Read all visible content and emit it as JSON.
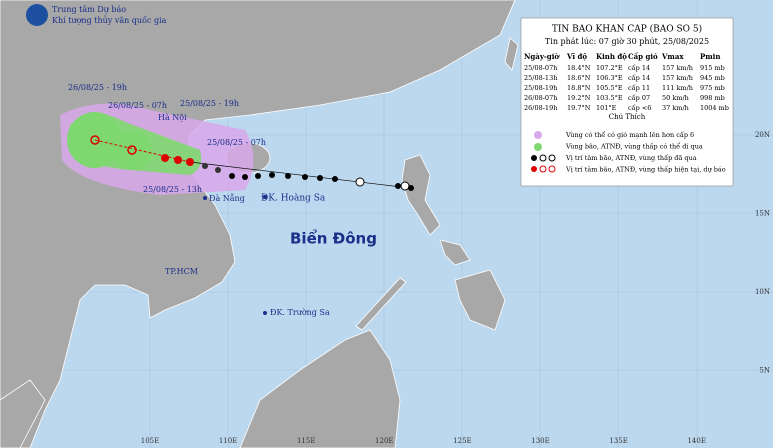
{
  "header": {
    "agency": "Trung tâm Dự báo",
    "agency_sub": "Khí tượng thủy văn quốc gia"
  },
  "map_labels": {
    "t1": "26/08/25 - 19h",
    "t2": "26/08/25 - 07h",
    "t3": "25/08/25 - 19h",
    "hanoi": "Hà Nội",
    "t4": "25/08/25 - 07h",
    "t5": "25/08/25 - 13h",
    "danang": "Đà Nẵng",
    "hoangsa": "ĐK. Hoàng Sa",
    "biendong": "Biển Đông",
    "hcm": "TP.HCM",
    "truongsa": "ĐK. Trường Sa"
  },
  "grid": {
    "lat": [
      "20N",
      "15N",
      "10N",
      "5N"
    ],
    "lon": [
      "105E",
      "110E",
      "115E",
      "120E",
      "125E",
      "130E",
      "135E",
      "140E"
    ]
  },
  "info": {
    "title": "TIN BAO KHAN CAP (BAO SO 5)",
    "issued": "Tin phát lúc: 07 giờ 30 phút, 25/08/2025",
    "table": {
      "header": [
        "Ngày-giờ",
        "Vĩ độ",
        "Kinh độ",
        "Cấp gió",
        "Vmax",
        "Pmin"
      ],
      "rows": [
        [
          "25/08-07h",
          "18.4°N",
          "107.2°E",
          "cấp 14",
          "157 km/h",
          "915 mb"
        ],
        [
          "25/08-13h",
          "18.6°N",
          "106.3°E",
          "cấp 14",
          "157 km/h",
          "945 mb"
        ],
        [
          "25/08-19h",
          "18.8°N",
          "105.5°E",
          "cấp 11",
          "111 km/h",
          "975 mb"
        ],
        [
          "26/08-07h",
          "19.2°N",
          "103.5°E",
          "cấp 07",
          "50 km/h",
          "998 mb"
        ],
        [
          "26/08-19h",
          "19.7°N",
          "101°E",
          "cấp <6",
          "37 km/h",
          "1004 mb"
        ]
      ]
    }
  },
  "legend": {
    "title": "Chú Thích",
    "items": [
      "Vùng có thể có gió mạnh lên hơn cấp 6",
      "Vùng bão, ATNĐ, vùng thấp có thể đi qua",
      "Vị trí tâm bão, ATNĐ, vùng thấp đã qua",
      "Vị trí tâm bão, ATNĐ, vùng thấp hiện tại, dự báo"
    ]
  }
}
